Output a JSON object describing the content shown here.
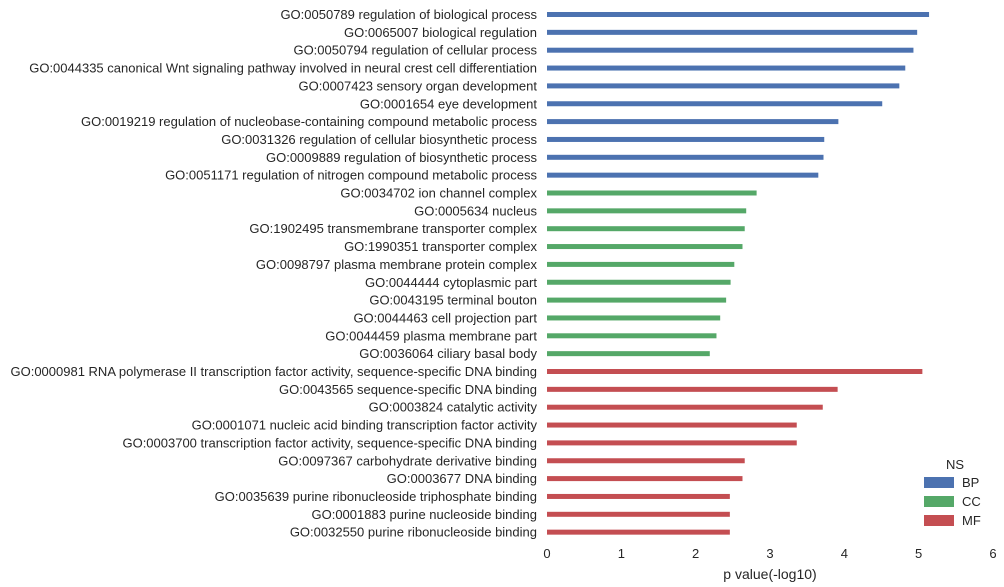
{
  "chart_data": {
    "type": "bar",
    "orientation": "horizontal",
    "xlabel": "p value(-log10)",
    "xlim": [
      0,
      6
    ],
    "xticks": [
      0,
      1,
      2,
      3,
      4,
      5,
      6
    ],
    "grid": false,
    "legend": {
      "title": "NS",
      "placement": "bottom-right",
      "entries": [
        {
          "name": "BP",
          "color": "#4c72b0"
        },
        {
          "name": "CC",
          "color": "#55a868"
        },
        {
          "name": "MF",
          "color": "#c44e52"
        }
      ]
    },
    "bars": [
      {
        "label": "GO:0050789 regulation of biological process",
        "value": 5.14,
        "ns": "BP"
      },
      {
        "label": "GO:0065007 biological regulation",
        "value": 4.98,
        "ns": "BP"
      },
      {
        "label": "GO:0050794 regulation of cellular process",
        "value": 4.93,
        "ns": "BP"
      },
      {
        "label": "GO:0044335 canonical Wnt signaling pathway involved in neural crest cell differentiation",
        "value": 4.82,
        "ns": "BP"
      },
      {
        "label": "GO:0007423 sensory organ development",
        "value": 4.74,
        "ns": "BP"
      },
      {
        "label": "GO:0001654 eye development",
        "value": 4.51,
        "ns": "BP"
      },
      {
        "label": "GO:0019219 regulation of nucleobase-containing compound metabolic process",
        "value": 3.92,
        "ns": "BP"
      },
      {
        "label": "GO:0031326 regulation of cellular biosynthetic process",
        "value": 3.73,
        "ns": "BP"
      },
      {
        "label": "GO:0009889 regulation of biosynthetic process",
        "value": 3.72,
        "ns": "BP"
      },
      {
        "label": "GO:0051171 regulation of nitrogen compound metabolic process",
        "value": 3.65,
        "ns": "BP"
      },
      {
        "label": "GO:0034702 ion channel complex",
        "value": 2.82,
        "ns": "CC"
      },
      {
        "label": "GO:0005634 nucleus",
        "value": 2.68,
        "ns": "CC"
      },
      {
        "label": "GO:1902495 transmembrane transporter complex",
        "value": 2.66,
        "ns": "CC"
      },
      {
        "label": "GO:1990351 transporter complex",
        "value": 2.63,
        "ns": "CC"
      },
      {
        "label": "GO:0098797 plasma membrane protein complex",
        "value": 2.52,
        "ns": "CC"
      },
      {
        "label": "GO:0044444 cytoplasmic part",
        "value": 2.47,
        "ns": "CC"
      },
      {
        "label": "GO:0043195 terminal bouton",
        "value": 2.41,
        "ns": "CC"
      },
      {
        "label": "GO:0044463 cell projection part",
        "value": 2.33,
        "ns": "CC"
      },
      {
        "label": "GO:0044459 plasma membrane part",
        "value": 2.28,
        "ns": "CC"
      },
      {
        "label": "GO:0036064 ciliary basal body",
        "value": 2.19,
        "ns": "CC"
      },
      {
        "label": "GO:0000981 RNA polymerase II transcription factor activity, sequence-specific DNA binding",
        "value": 5.05,
        "ns": "MF"
      },
      {
        "label": "GO:0043565 sequence-specific DNA binding",
        "value": 3.91,
        "ns": "MF"
      },
      {
        "label": "GO:0003824 catalytic activity",
        "value": 3.71,
        "ns": "MF"
      },
      {
        "label": "GO:0001071 nucleic acid binding transcription factor activity",
        "value": 3.36,
        "ns": "MF"
      },
      {
        "label": "GO:0003700 transcription factor activity, sequence-specific DNA binding",
        "value": 3.36,
        "ns": "MF"
      },
      {
        "label": "GO:0097367 carbohydrate derivative binding",
        "value": 2.66,
        "ns": "MF"
      },
      {
        "label": "GO:0003677 DNA binding",
        "value": 2.63,
        "ns": "MF"
      },
      {
        "label": "GO:0035639 purine ribonucleoside triphosphate binding",
        "value": 2.46,
        "ns": "MF"
      },
      {
        "label": "GO:0001883 purine nucleoside binding",
        "value": 2.46,
        "ns": "MF"
      },
      {
        "label": "GO:0032550 purine ribonucleoside binding",
        "value": 2.46,
        "ns": "MF"
      }
    ]
  }
}
